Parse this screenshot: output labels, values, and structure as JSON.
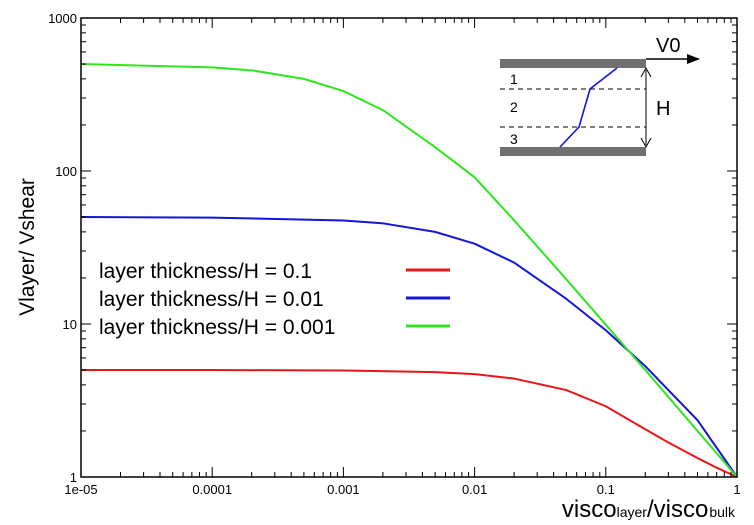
{
  "chart_data": {
    "type": "line",
    "title": "",
    "xlabel": {
      "main": "visco",
      "sub1": "layer",
      "slash": "/visco",
      "sub2": "bulk"
    },
    "ylabel": "Vlayer/ Vshear",
    "xscale": "log",
    "yscale": "log",
    "xlim": [
      1e-05,
      1
    ],
    "ylim": [
      1,
      1000
    ],
    "x_ticks": [
      {
        "value": 1e-05,
        "label": "1e-05"
      },
      {
        "value": 0.0001,
        "label": "0.0001"
      },
      {
        "value": 0.001,
        "label": "0.001"
      },
      {
        "value": 0.01,
        "label": "0.01"
      },
      {
        "value": 0.1,
        "label": "0.1"
      },
      {
        "value": 1,
        "label": "1"
      }
    ],
    "y_ticks": [
      {
        "value": 1,
        "label": "1"
      },
      {
        "value": 10,
        "label": "10"
      },
      {
        "value": 100,
        "label": "100"
      },
      {
        "value": 1000,
        "label": "1000"
      }
    ],
    "grid": false,
    "legend_position": "center-left",
    "series": [
      {
        "name": "layer thickness/H = 0.1",
        "color": "#e8161b",
        "x": [
          1e-05,
          0.0001,
          0.001,
          0.005,
          0.01,
          0.02,
          0.05,
          0.1,
          0.2,
          0.3,
          0.5,
          0.7,
          1
        ],
        "y": [
          5.0,
          5.0,
          4.97,
          4.85,
          4.7,
          4.4,
          3.7,
          2.9,
          2.05,
          1.68,
          1.33,
          1.15,
          1.0
        ]
      },
      {
        "name": "layer thickness/H = 0.01",
        "color": "#1515d6",
        "x": [
          1e-05,
          0.0001,
          0.001,
          0.002,
          0.005,
          0.01,
          0.02,
          0.05,
          0.1,
          0.2,
          0.5,
          1
        ],
        "y": [
          50,
          49.6,
          47.5,
          45.5,
          40,
          33.5,
          25.2,
          14.6,
          9.1,
          5.3,
          2.35,
          1.0
        ]
      },
      {
        "name": "layer thickness/H = 0.001",
        "color": "#2fe51e",
        "x": [
          1e-05,
          0.0001,
          0.0002,
          0.0005,
          0.001,
          0.002,
          0.005,
          0.01,
          0.02,
          0.05,
          0.1,
          0.2,
          0.5,
          1
        ],
        "y": [
          500,
          476,
          455,
          400,
          333,
          250,
          143,
          90.9,
          47.6,
          19.6,
          9.9,
          5.0,
          2.0,
          1.0
        ]
      }
    ]
  },
  "inset": {
    "velocity_label": "V0",
    "height_label": "H",
    "layer_labels": [
      "1",
      "2",
      "3"
    ]
  }
}
